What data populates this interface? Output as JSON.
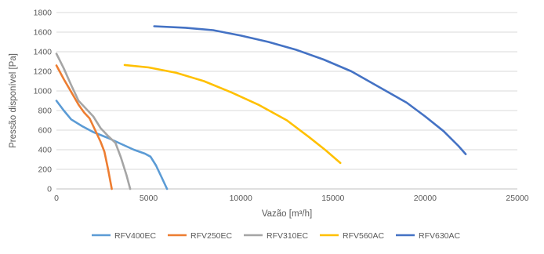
{
  "chart_data": {
    "type": "line",
    "title": "",
    "xlabel": "Vazão [m³/h]",
    "ylabel": "Pressão disponível [Pa]",
    "xlim": [
      0,
      25000
    ],
    "ylim": [
      0,
      1800
    ],
    "x_ticks": [
      "0",
      "5000",
      "10000",
      "15000",
      "20000",
      "25000"
    ],
    "y_ticks": [
      "0",
      "200",
      "400",
      "600",
      "800",
      "1000",
      "1200",
      "1400",
      "1600",
      "1800"
    ],
    "grid": "horizontal",
    "legend_position": "bottom",
    "series": [
      {
        "name": "RFV400EC",
        "color": "#5b9bd5",
        "points": [
          [
            0,
            900
          ],
          [
            400,
            800
          ],
          [
            800,
            710
          ],
          [
            1400,
            640
          ],
          [
            2000,
            580
          ],
          [
            2800,
            520
          ],
          [
            3500,
            460
          ],
          [
            4200,
            400
          ],
          [
            4800,
            360
          ],
          [
            5100,
            330
          ],
          [
            5400,
            240
          ],
          [
            5700,
            120
          ],
          [
            6000,
            0
          ]
        ]
      },
      {
        "name": "RFV250EC",
        "color": "#ed7d31",
        "points": [
          [
            0,
            1260
          ],
          [
            400,
            1120
          ],
          [
            800,
            990
          ],
          [
            1200,
            860
          ],
          [
            1500,
            780
          ],
          [
            1800,
            720
          ],
          [
            2100,
            600
          ],
          [
            2400,
            480
          ],
          [
            2600,
            380
          ],
          [
            2800,
            200
          ],
          [
            3000,
            0
          ]
        ]
      },
      {
        "name": "RFV310EC",
        "color": "#a5a5a5",
        "points": [
          [
            0,
            1380
          ],
          [
            400,
            1230
          ],
          [
            800,
            1060
          ],
          [
            1200,
            900
          ],
          [
            1600,
            820
          ],
          [
            2000,
            740
          ],
          [
            2400,
            620
          ],
          [
            2800,
            540
          ],
          [
            3200,
            470
          ],
          [
            3500,
            320
          ],
          [
            3800,
            140
          ],
          [
            4000,
            0
          ]
        ]
      },
      {
        "name": "RFV560AC",
        "color": "#ffc000",
        "points": [
          [
            3700,
            1265
          ],
          [
            5000,
            1240
          ],
          [
            6500,
            1185
          ],
          [
            8000,
            1100
          ],
          [
            9500,
            985
          ],
          [
            11000,
            855
          ],
          [
            12500,
            700
          ],
          [
            13700,
            530
          ],
          [
            14600,
            395
          ],
          [
            15400,
            265
          ]
        ]
      },
      {
        "name": "RFV630AC",
        "color": "#4472c4",
        "points": [
          [
            5300,
            1660
          ],
          [
            7000,
            1645
          ],
          [
            8500,
            1620
          ],
          [
            10000,
            1565
          ],
          [
            11500,
            1500
          ],
          [
            13000,
            1420
          ],
          [
            14500,
            1320
          ],
          [
            16000,
            1200
          ],
          [
            17500,
            1040
          ],
          [
            19000,
            880
          ],
          [
            20000,
            740
          ],
          [
            21000,
            590
          ],
          [
            21800,
            440
          ],
          [
            22200,
            355
          ]
        ]
      }
    ]
  }
}
